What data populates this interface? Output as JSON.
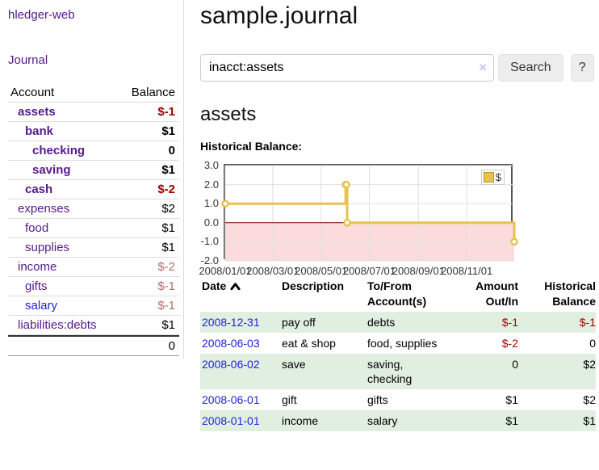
{
  "app": {
    "brand": "hledger-web"
  },
  "colors": {
    "accent_purple": "#551a8b",
    "link_blue": "#2222dd",
    "negative_strong": "#a40000",
    "negative_muted": "#b86a6a",
    "row_stripe_green": "#e1efe1",
    "chart_line_gold": "#e8c24c",
    "chart_negative_fill": "#fbdbdb",
    "chart_zero_line": "#8b0000"
  },
  "sidebar": {
    "journal_label": "Journal",
    "accounts_table": {
      "headers": [
        "Account",
        "Balance"
      ],
      "rows": [
        {
          "account": "assets",
          "balance": "$-1",
          "depth": 1,
          "bold": true
        },
        {
          "account": "bank",
          "balance": "$1",
          "depth": 2,
          "bold": true
        },
        {
          "account": "checking",
          "balance": "0",
          "depth": 3,
          "bold": true
        },
        {
          "account": "saving",
          "balance": "$1",
          "depth": 3,
          "bold": true
        },
        {
          "account": "cash",
          "balance": "$-2",
          "depth": 2,
          "bold": true
        },
        {
          "account": "expenses",
          "balance": "$2",
          "depth": 1,
          "bold": false
        },
        {
          "account": "food",
          "balance": "$1",
          "depth": 2,
          "bold": false
        },
        {
          "account": "supplies",
          "balance": "$1",
          "depth": 2,
          "bold": false
        },
        {
          "account": "income",
          "balance": "$-2",
          "depth": 1,
          "bold": false
        },
        {
          "account": "gifts",
          "balance": "$-1",
          "depth": 2,
          "bold": false
        },
        {
          "account": "salary",
          "balance": "$-1",
          "depth": 2,
          "bold": false,
          "blue": true
        },
        {
          "account": "liabilities:debts",
          "balance": "$1",
          "depth": 1,
          "bold": false
        }
      ],
      "total": "0"
    }
  },
  "main": {
    "title": "sample.journal",
    "search": {
      "value": "inacct:assets",
      "clear_icon": "×",
      "button_label": "Search",
      "help_label": "?"
    },
    "account_heading": "assets",
    "register": {
      "headers": {
        "date": "Date",
        "description": "Description",
        "accounts": "To/From Account(s)",
        "amount": "Amount Out/In",
        "balance": "Historical Balance"
      },
      "rows": [
        {
          "date": "2008-12-31",
          "description": "pay off",
          "accounts": "debts",
          "amount": "$-1",
          "balance": "$-1"
        },
        {
          "date": "2008-06-03",
          "description": "eat & shop",
          "accounts": "food, supplies",
          "amount": "$-2",
          "balance": "0"
        },
        {
          "date": "2008-06-02",
          "description": "save",
          "accounts": "saving, checking",
          "amount": "0",
          "balance": "$2"
        },
        {
          "date": "2008-06-01",
          "description": "gift",
          "accounts": "gifts",
          "amount": "$1",
          "balance": "$2"
        },
        {
          "date": "2008-01-01",
          "description": "income",
          "accounts": "salary",
          "amount": "$1",
          "balance": "$1"
        }
      ]
    }
  },
  "chart_data": {
    "type": "line",
    "style": "step-after",
    "title": "Historical Balance:",
    "series": [
      {
        "name": "$",
        "color": "#e8c24c",
        "points": [
          [
            "2008-01-01",
            1
          ],
          [
            "2008-06-01",
            2
          ],
          [
            "2008-06-02",
            2
          ],
          [
            "2008-06-03",
            0
          ],
          [
            "2008-12-31",
            -1
          ]
        ]
      }
    ],
    "xlim": [
      "2008-01-01",
      "2008-12-31"
    ],
    "ylim": [
      -2,
      3
    ],
    "x_ticks": [
      "2008/01/01",
      "2008/03/01",
      "2008/05/01",
      "2008/07/01",
      "2008/09/01",
      "2008/11/01"
    ],
    "y_ticks": [
      3.0,
      2.0,
      1.0,
      0.0,
      -1.0,
      -2.0
    ],
    "grid": true,
    "legend_position": "top-right",
    "negative_region_color": "#fbdbdb",
    "zero_line_color": "#8b0000",
    "grid_color": "#e0e0e0"
  }
}
